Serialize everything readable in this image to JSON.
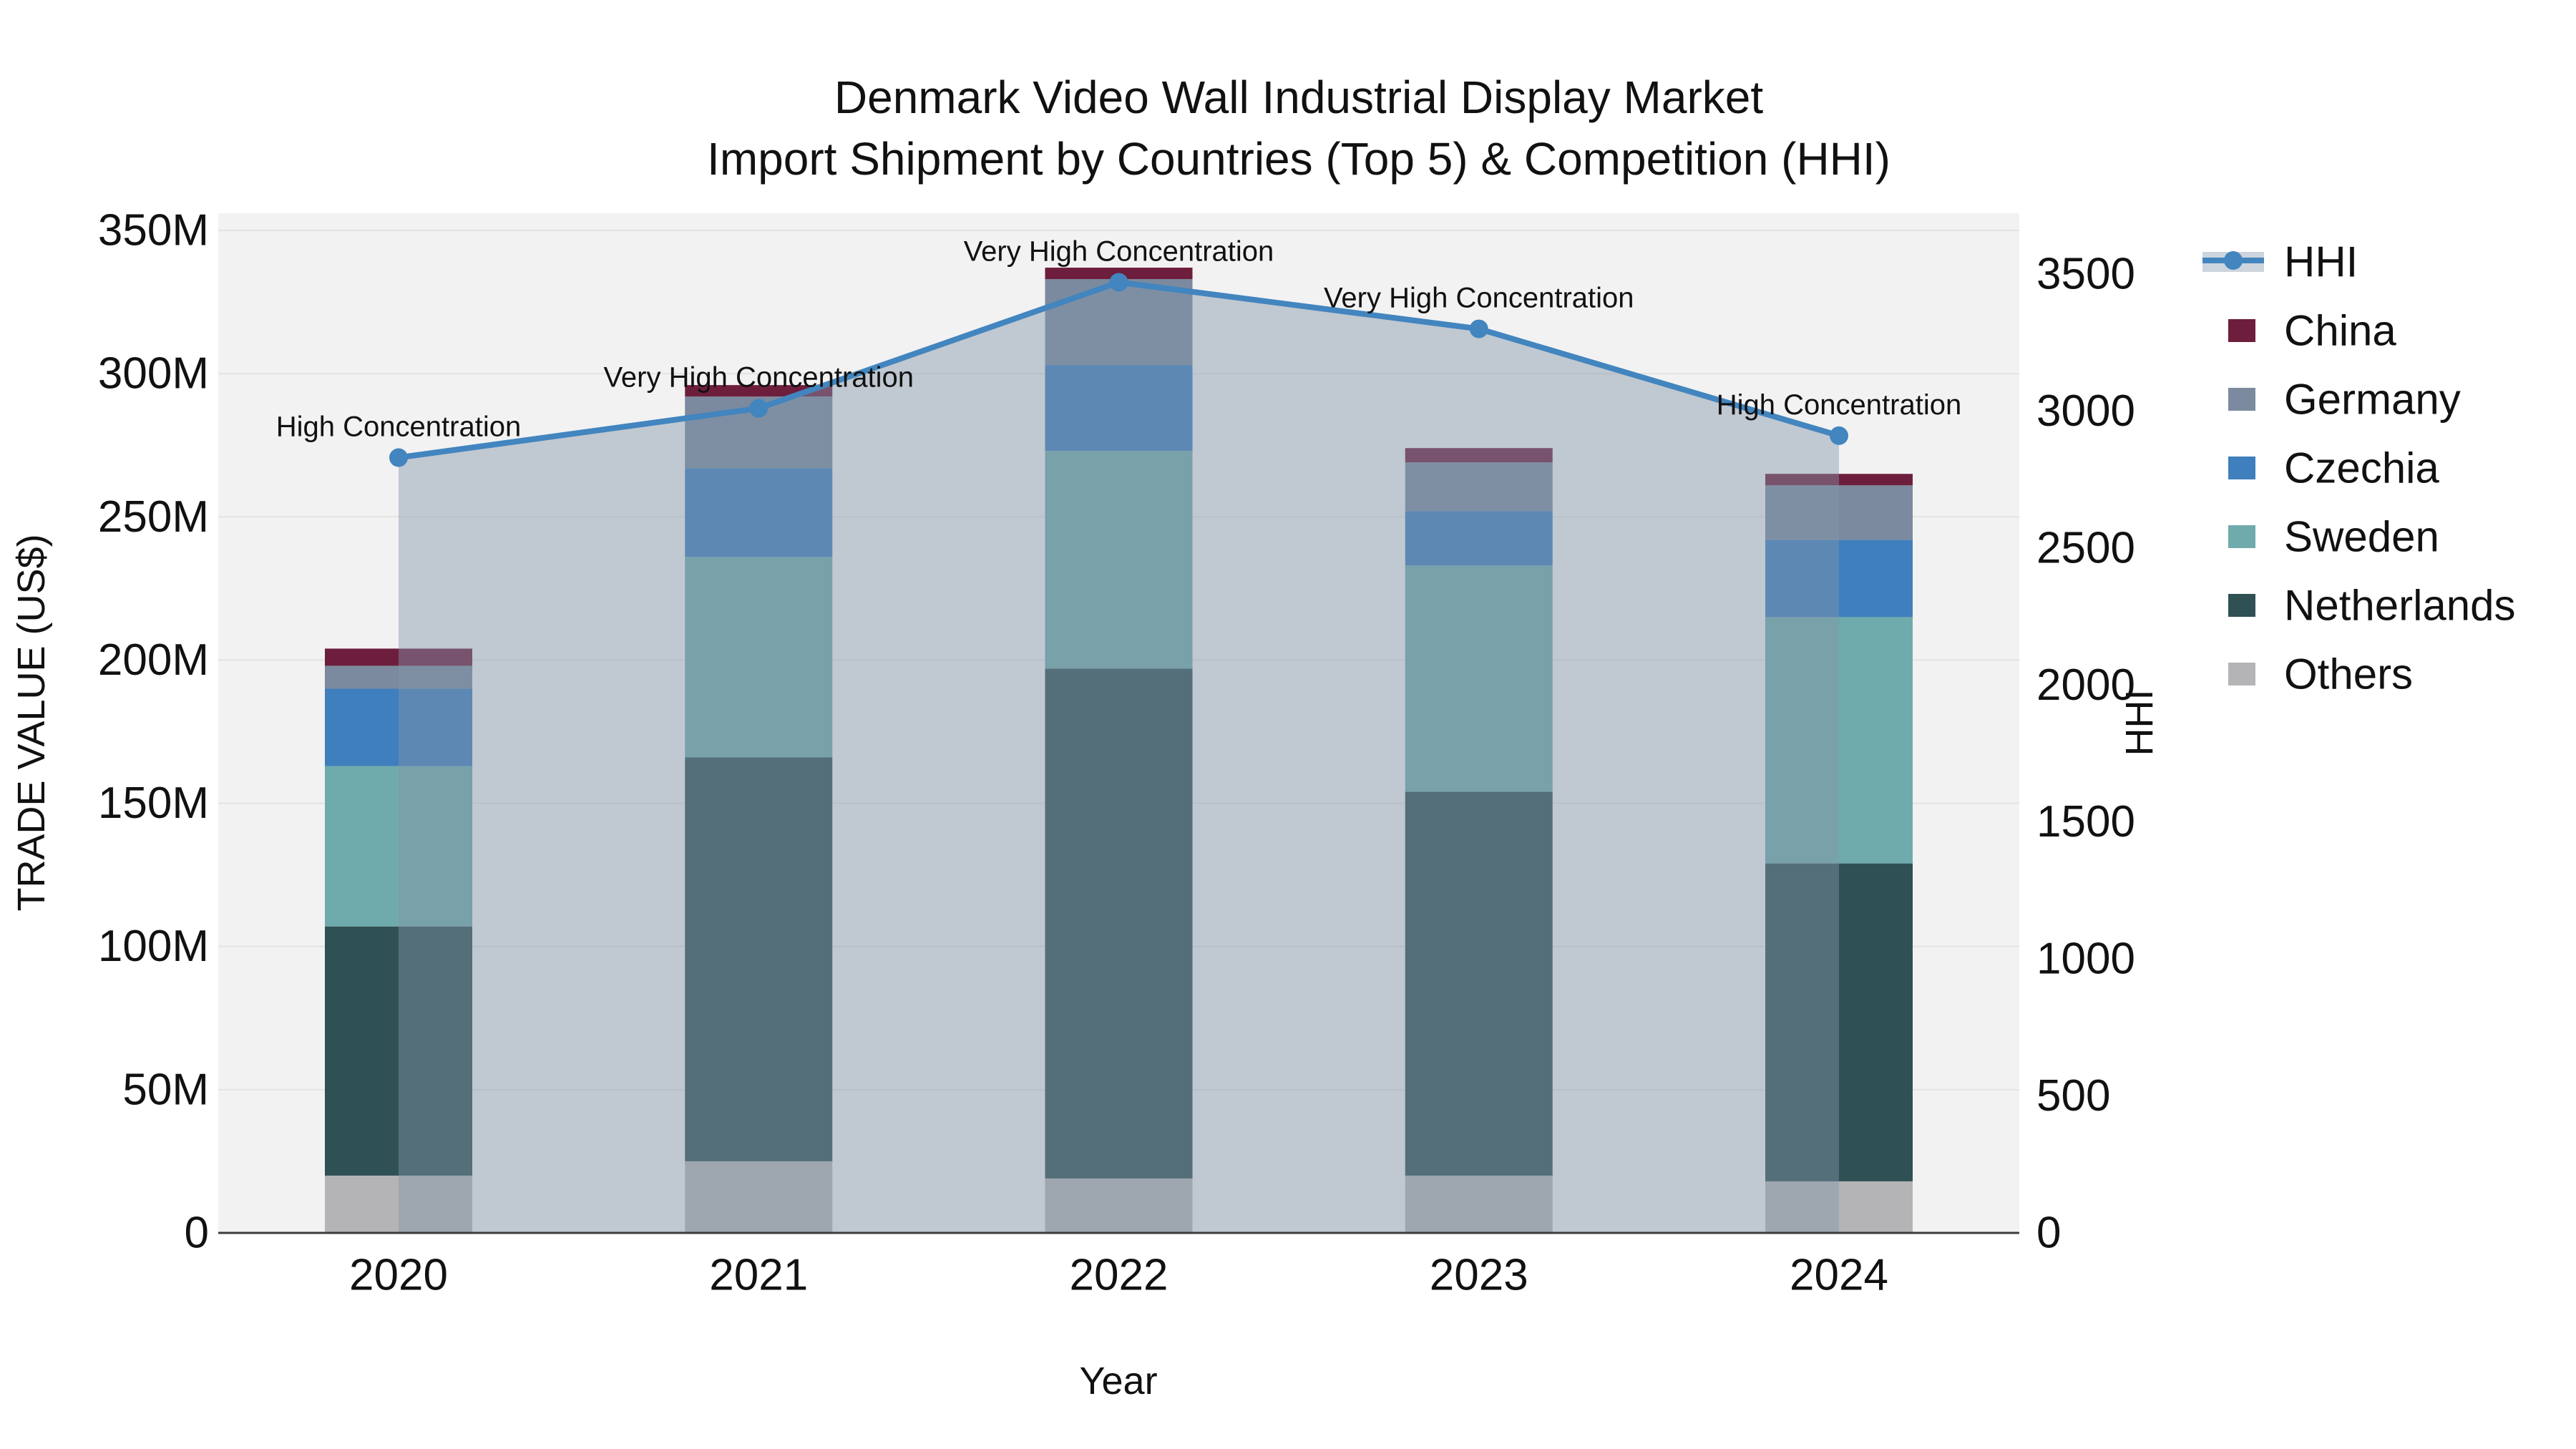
{
  "title": {
    "line1": "Denmark Video Wall Industrial Display Market",
    "line2": "Import Shipment by Countries (Top 5) & Competition (HHI)"
  },
  "axes": {
    "left": {
      "title": "TRADE VALUE (US$)",
      "tick_labels": [
        "0",
        "50M",
        "100M",
        "150M",
        "200M",
        "250M",
        "300M",
        "350M"
      ],
      "tick_values": [
        0,
        50,
        100,
        150,
        200,
        250,
        300,
        350
      ]
    },
    "right": {
      "title": "HHI",
      "tick_labels": [
        "0",
        "500",
        "1000",
        "1500",
        "2000",
        "2500",
        "3000",
        "3500"
      ],
      "tick_values": [
        0,
        500,
        1000,
        1500,
        2000,
        2500,
        3000,
        3500
      ]
    },
    "x": {
      "title": "Year",
      "tick_labels": [
        "2020",
        "2021",
        "2022",
        "2023",
        "2024"
      ]
    }
  },
  "legend": {
    "items": [
      {
        "label": "HHI",
        "type": "line",
        "color": "#4285bf"
      },
      {
        "label": "China",
        "type": "swatch",
        "color": "#6e1e3d"
      },
      {
        "label": "Germany",
        "type": "swatch",
        "color": "#7b8a9e"
      },
      {
        "label": "Czechia",
        "type": "swatch",
        "color": "#3f7fbd"
      },
      {
        "label": "Sweden",
        "type": "swatch",
        "color": "#6fabac"
      },
      {
        "label": "Netherlands",
        "type": "swatch",
        "color": "#2f5154"
      },
      {
        "label": "Others",
        "type": "swatch",
        "color": "#b4b4b6"
      }
    ]
  },
  "colors": {
    "plot_bg": "#f2f2f2",
    "grid": "#e3e3e3",
    "axis_line": "#3c3c3c",
    "hhi_line": "#4285bf",
    "hhi_fill": "rgba(130,148,168,0.45)",
    "hhi_legend_band": "#ccd5dd",
    "text": "#111111"
  },
  "chart_data": {
    "type": "bar+line",
    "bar_mode": "stacked",
    "title": "Denmark Video Wall Industrial Display Market — Import Shipment by Countries (Top 5) & Competition (HHI)",
    "categories": [
      "2020",
      "2021",
      "2022",
      "2023",
      "2024"
    ],
    "bar_value_unit": "Million US$",
    "series": [
      {
        "name": "Others",
        "color": "#b4b4b6",
        "values": [
          20,
          25,
          19,
          20,
          18
        ]
      },
      {
        "name": "Netherlands",
        "color": "#2f5154",
        "values": [
          87,
          141,
          178,
          134,
          111
        ]
      },
      {
        "name": "Sweden",
        "color": "#6fabac",
        "values": [
          56,
          70,
          76,
          79,
          86
        ]
      },
      {
        "name": "Czechia",
        "color": "#3f7fbd",
        "values": [
          27,
          31,
          30,
          19,
          27
        ]
      },
      {
        "name": "Germany",
        "color": "#7b8a9e",
        "values": [
          8,
          25,
          30,
          17,
          19
        ]
      },
      {
        "name": "China",
        "color": "#6e1e3d",
        "values": [
          6,
          4,
          4,
          5,
          4
        ]
      }
    ],
    "bar_totals": [
      204,
      296,
      337,
      274,
      265
    ],
    "line_series": {
      "name": "HHI",
      "values": [
        2830,
        3010,
        3470,
        3300,
        2910
      ],
      "annotations": [
        "High Concentration",
        "Very High Concentration",
        "Very High Concentration",
        "Very High Concentration",
        "High Concentration"
      ]
    },
    "xlabel": "Year",
    "ylabel_left": "TRADE VALUE (US$)",
    "ylabel_right": "HHI",
    "ylim_left": [
      0,
      350
    ],
    "ylim_right": [
      0,
      3500
    ],
    "grid": "horizontal",
    "legend_position": "right"
  }
}
